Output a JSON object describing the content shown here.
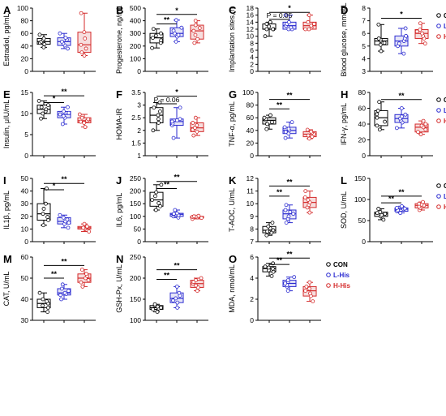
{
  "figure": {
    "groups": [
      "CON",
      "L-His",
      "H-His"
    ],
    "group_colors": [
      "#000000",
      "#2b2bd0",
      "#d42a2a"
    ],
    "box_fills": [
      "#ffffff",
      "#e6e6f7",
      "#f6dede"
    ]
  },
  "chart_data": [
    {
      "panel": "A",
      "type": "box",
      "ylabel": "Estradiol, pg/mL",
      "ylim": [
        0,
        100
      ],
      "yticks": [
        0,
        20,
        40,
        60,
        80,
        100
      ],
      "boxes": [
        [
          38,
          43,
          47,
          52,
          58
        ],
        [
          36,
          41,
          47,
          53,
          60
        ],
        [
          25,
          30,
          42,
          62,
          92
        ]
      ],
      "annotations": []
    },
    {
      "panel": "B",
      "type": "box",
      "ylabel": "Progesterone, ng/mL",
      "ylim": [
        0,
        500
      ],
      "yticks": [
        0,
        100,
        200,
        300,
        400,
        500
      ],
      "boxes": [
        [
          185,
          225,
          265,
          300,
          335
        ],
        [
          235,
          275,
          300,
          345,
          405
        ],
        [
          225,
          255,
          320,
          365,
          400
        ]
      ],
      "annotations": [
        {
          "from": 0,
          "to": 2,
          "y": 450,
          "label": "*"
        },
        {
          "from": 0,
          "to": 1,
          "y": 375,
          "label": "**"
        }
      ]
    },
    {
      "panel": "C",
      "type": "box",
      "ylabel": "Implantation sites, n",
      "ylim": [
        0,
        18
      ],
      "yticks": [
        0,
        2,
        4,
        6,
        8,
        10,
        12,
        14,
        16,
        18
      ],
      "boxes": [
        [
          10,
          12,
          12,
          13.5,
          14
        ],
        [
          12,
          12,
          13,
          14,
          16
        ],
        [
          12,
          12,
          13,
          14,
          16
        ]
      ],
      "annotations": [
        {
          "from": 0,
          "to": 2,
          "y": 16.8,
          "label": "*"
        },
        {
          "from": 0,
          "to": 1,
          "y": 14.8,
          "label": "P = 0.05"
        }
      ]
    },
    {
      "panel": "D",
      "type": "box",
      "ylabel": "Blood glucose, mmol/L",
      "ylim": [
        3,
        8
      ],
      "yticks": [
        3,
        4,
        5,
        6,
        7,
        8
      ],
      "boxes": [
        [
          4.6,
          5.1,
          5.4,
          5.6,
          6.7
        ],
        [
          4.4,
          5.0,
          5.4,
          5.8,
          6.4
        ],
        [
          5.2,
          5.6,
          6.0,
          6.3,
          6.8
        ]
      ],
      "annotations": [
        {
          "from": 0,
          "to": 2,
          "y": 7.2,
          "label": "*"
        }
      ]
    },
    {
      "panel": "E",
      "type": "box",
      "ylabel": "Insulin, μIU/mL",
      "ylim": [
        0,
        15
      ],
      "yticks": [
        0,
        5,
        10,
        15
      ],
      "boxes": [
        [
          8.8,
          10.0,
          11.0,
          12.0,
          13.0
        ],
        [
          7.5,
          9.0,
          9.8,
          10.5,
          11.5
        ],
        [
          6.8,
          7.8,
          8.3,
          9.0,
          9.8
        ]
      ],
      "annotations": [
        {
          "from": 0,
          "to": 2,
          "y": 14.2,
          "label": "**"
        },
        {
          "from": 0,
          "to": 1,
          "y": 12.6,
          "label": "*"
        }
      ]
    },
    {
      "panel": "F",
      "type": "box",
      "ylabel": "HOMA-IR",
      "ylim": [
        1.0,
        3.5
      ],
      "yticks": [
        1.0,
        1.5,
        2.0,
        2.5,
        3.0,
        3.5
      ],
      "boxes": [
        [
          2.0,
          2.3,
          2.6,
          2.9,
          3.1
        ],
        [
          1.7,
          2.2,
          2.35,
          2.45,
          2.9
        ],
        [
          1.8,
          1.95,
          2.1,
          2.3,
          2.5
        ]
      ],
      "annotations": [
        {
          "from": 0,
          "to": 2,
          "y": 3.35,
          "label": "*"
        },
        {
          "from": 0,
          "to": 1,
          "y": 3.05,
          "label": "P = 0.06"
        }
      ]
    },
    {
      "panel": "G",
      "type": "box",
      "ylabel": "TNF-α, pg/mL",
      "ylim": [
        0,
        100
      ],
      "yticks": [
        0,
        20,
        40,
        60,
        80,
        100
      ],
      "boxes": [
        [
          42,
          50,
          56,
          60,
          64
        ],
        [
          28,
          35,
          40,
          45,
          53
        ],
        [
          27,
          30,
          34,
          38,
          41
        ]
      ],
      "annotations": [
        {
          "from": 0,
          "to": 2,
          "y": 89,
          "label": "**"
        },
        {
          "from": 0,
          "to": 1,
          "y": 74,
          "label": "**"
        }
      ]
    },
    {
      "panel": "H",
      "type": "box",
      "ylabel": "IFN-γ, pg/mL",
      "ylim": [
        0,
        80
      ],
      "yticks": [
        0,
        20,
        40,
        60,
        80
      ],
      "boxes": [
        [
          33,
          38,
          48,
          57,
          68
        ],
        [
          35,
          42,
          47,
          52,
          60
        ],
        [
          27,
          30,
          36,
          40,
          44
        ]
      ],
      "annotations": [
        {
          "from": 0,
          "to": 2,
          "y": 71,
          "label": "**"
        }
      ]
    },
    {
      "panel": "I",
      "type": "box",
      "ylabel": "IL1β, pg/mL",
      "ylim": [
        0,
        50
      ],
      "yticks": [
        0,
        10,
        20,
        30,
        40,
        50
      ],
      "boxes": [
        [
          13,
          17,
          22,
          30,
          42
        ],
        [
          11,
          14,
          16,
          19,
          21
        ],
        [
          8,
          10,
          11,
          12,
          14
        ]
      ],
      "annotations": [
        {
          "from": 0,
          "to": 2,
          "y": 46,
          "label": "**"
        },
        {
          "from": 0,
          "to": 1,
          "y": 41,
          "label": "*"
        }
      ]
    },
    {
      "panel": "J",
      "type": "box",
      "ylabel": "IL6, pg/mL",
      "ylim": [
        0,
        250
      ],
      "yticks": [
        0,
        50,
        100,
        150,
        200,
        250
      ],
      "boxes": [
        [
          125,
          140,
          165,
          195,
          225
        ],
        [
          95,
          100,
          108,
          112,
          125
        ],
        [
          90,
          94,
          98,
          100,
          102
        ]
      ],
      "annotations": [
        {
          "from": 0,
          "to": 2,
          "y": 238,
          "label": "**"
        },
        {
          "from": 0,
          "to": 1,
          "y": 210,
          "label": "**"
        }
      ]
    },
    {
      "panel": "K",
      "type": "box",
      "ylabel": "T-AOC, U/mL",
      "ylim": [
        7,
        12
      ],
      "yticks": [
        7,
        8,
        9,
        10,
        11,
        12
      ],
      "boxes": [
        [
          7.5,
          7.7,
          7.9,
          8.2,
          8.5
        ],
        [
          8.5,
          8.8,
          9.2,
          9.5,
          9.9
        ],
        [
          9.3,
          9.7,
          10.1,
          10.5,
          11.0
        ]
      ],
      "annotations": [
        {
          "from": 0,
          "to": 2,
          "y": 11.4,
          "label": "**"
        },
        {
          "from": 0,
          "to": 1,
          "y": 10.6,
          "label": "**"
        }
      ]
    },
    {
      "panel": "L",
      "type": "box",
      "ylabel": "SOD, U/mL",
      "ylim": [
        0,
        150
      ],
      "yticks": [
        0,
        50,
        100,
        150
      ],
      "boxes": [
        [
          52,
          60,
          66,
          70,
          78
        ],
        [
          68,
          72,
          77,
          80,
          84
        ],
        [
          75,
          80,
          86,
          90,
          94
        ]
      ],
      "annotations": [
        {
          "from": 0,
          "to": 2,
          "y": 108,
          "label": "**"
        },
        {
          "from": 0,
          "to": 1,
          "y": 92,
          "label": "**"
        }
      ]
    },
    {
      "panel": "M",
      "type": "box",
      "ylabel": "CAT, U/mL",
      "ylim": [
        30,
        60
      ],
      "yticks": [
        30,
        40,
        50,
        60
      ],
      "boxes": [
        [
          34,
          36,
          38,
          40,
          43
        ],
        [
          40,
          42,
          43,
          45,
          47
        ],
        [
          46,
          48,
          50,
          52,
          54
        ]
      ],
      "annotations": [
        {
          "from": 0,
          "to": 2,
          "y": 56,
          "label": "**"
        },
        {
          "from": 0,
          "to": 1,
          "y": 50,
          "label": "**"
        }
      ]
    },
    {
      "panel": "N",
      "type": "box",
      "ylabel": "GSH-Px, U/mL",
      "ylim": [
        100,
        250
      ],
      "yticks": [
        100,
        150,
        200,
        250
      ],
      "boxes": [
        [
          120,
          126,
          130,
          135,
          138
        ],
        [
          130,
          142,
          152,
          165,
          180
        ],
        [
          170,
          178,
          187,
          195,
          200
        ]
      ],
      "annotations": [
        {
          "from": 0,
          "to": 2,
          "y": 220,
          "label": "**"
        },
        {
          "from": 0,
          "to": 1,
          "y": 197,
          "label": "**"
        }
      ]
    },
    {
      "panel": "O",
      "type": "box",
      "ylabel": "MDA, nmol/mL",
      "ylim": [
        0,
        6
      ],
      "yticks": [
        0,
        2,
        4,
        6
      ],
      "boxes": [
        [
          4.2,
          4.6,
          4.9,
          5.1,
          5.4
        ],
        [
          2.8,
          3.2,
          3.5,
          3.8,
          4.1
        ],
        [
          1.8,
          2.3,
          2.8,
          3.2,
          3.6
        ]
      ],
      "annotations": [
        {
          "from": 0,
          "to": 2,
          "y": 5.9,
          "label": "**"
        },
        {
          "from": 0,
          "to": 1,
          "y": 5.3,
          "label": "**"
        }
      ]
    }
  ]
}
